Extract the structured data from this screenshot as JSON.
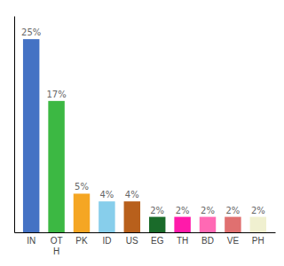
{
  "chart_data": {
    "type": "bar",
    "categories": [
      "IN",
      "OT\nH",
      "PK",
      "ID",
      "US",
      "EG",
      "TH",
      "BD",
      "VE",
      "PH"
    ],
    "values": [
      25,
      17,
      5,
      4,
      4,
      2,
      2,
      2,
      2,
      2
    ],
    "value_labels": [
      "25%",
      "17%",
      "5%",
      "4%",
      "4%",
      "2%",
      "2%",
      "2%",
      "2%",
      "2%"
    ],
    "colors": [
      "#4472c4",
      "#3cb843",
      "#f5a623",
      "#87ceeb",
      "#b8601c",
      "#1a6b2a",
      "#ff1aaa",
      "#ff69b4",
      "#e07070",
      "#f0f0d0"
    ],
    "ylim": [
      0,
      28
    ],
    "data_labels": true,
    "tick_labels": "x",
    "grid": false
  }
}
